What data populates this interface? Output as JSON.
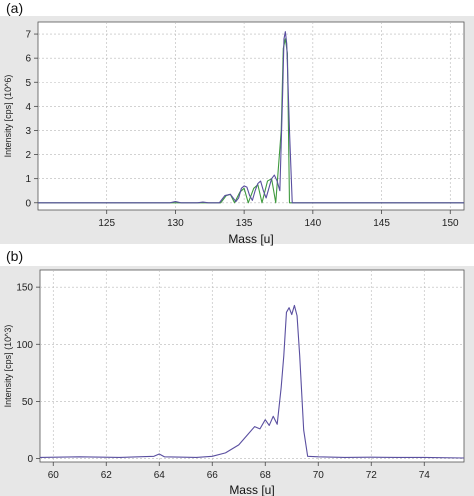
{
  "panel_labels": {
    "a": "(a)",
    "b": "(b)"
  },
  "chart_data": [
    {
      "type": "line",
      "panel": "(a)",
      "xlabel": "Mass [u]",
      "ylabel": "Intensity [cps] (10^6)",
      "xlim": [
        120,
        151
      ],
      "ylim": [
        -0.3,
        7.5
      ],
      "x_ticks": [
        125,
        130,
        135,
        140,
        145,
        150
      ],
      "y_ticks": [
        0,
        1,
        2,
        3,
        4,
        5,
        6,
        7
      ],
      "grid": true,
      "series": [
        {
          "color": "#5a4fa0",
          "x": [
            120,
            129.6,
            130,
            130.4,
            131.6,
            132,
            132.4,
            133.2,
            133.6,
            134,
            134.4,
            134.6,
            134.8,
            135,
            135.2,
            135.4,
            135.6,
            135.8,
            136,
            136.2,
            136.4,
            136.6,
            136.8,
            137,
            137.2,
            137.4,
            137.6,
            137.8,
            137.9,
            138,
            138.1,
            138.3,
            138.5,
            151
          ],
          "y": [
            0,
            0,
            0.05,
            0,
            0,
            0.03,
            0,
            0,
            0.3,
            0.35,
            0.05,
            0.2,
            0.6,
            0.7,
            0.65,
            0.3,
            0.1,
            0.5,
            0.8,
            0.9,
            0.5,
            0.2,
            0.6,
            1.0,
            1.15,
            0.9,
            0.5,
            4.5,
            6.8,
            7.1,
            6.6,
            3.0,
            0,
            0
          ]
        },
        {
          "color": "#3f9a3f",
          "x": [
            120,
            133.3,
            133.7,
            134,
            134.3,
            134.7,
            135,
            135.3,
            135.7,
            136,
            136.3,
            136.7,
            137,
            137.3,
            137.7,
            137.85,
            138,
            138.15,
            138.3,
            151
          ],
          "y": [
            0,
            0,
            0.3,
            0.35,
            0,
            0.45,
            0.6,
            0,
            0.6,
            0.75,
            0,
            0.9,
            1.0,
            0,
            3.0,
            6.4,
            6.8,
            6.2,
            0,
            0
          ]
        }
      ]
    },
    {
      "type": "line",
      "panel": "(b)",
      "xlabel": "Mass [u]",
      "ylabel": "Intensity [cps] (10^3)",
      "xlim": [
        59.5,
        75.5
      ],
      "ylim": [
        -3,
        165
      ],
      "x_ticks": [
        60,
        62,
        64,
        66,
        68,
        70,
        72,
        74
      ],
      "y_ticks": [
        0,
        50,
        100,
        150
      ],
      "grid": true,
      "series": [
        {
          "color": "#5a4fa0",
          "x": [
            59.5,
            61,
            62.5,
            63.8,
            64,
            64.2,
            65.4,
            66,
            66.5,
            67,
            67.3,
            67.6,
            67.8,
            68,
            68.15,
            68.3,
            68.45,
            68.6,
            68.7,
            68.8,
            68.9,
            69,
            69.1,
            69.2,
            69.3,
            69.45,
            69.6,
            70,
            71,
            72,
            73,
            74,
            75.5
          ],
          "y": [
            1,
            1.5,
            1,
            2,
            4,
            1.5,
            1,
            2,
            5,
            12,
            20,
            28,
            26,
            34,
            29,
            37,
            30,
            62,
            90,
            128,
            132,
            126,
            134,
            125,
            90,
            25,
            2,
            1.5,
            1,
            1.2,
            1,
            1,
            0.5
          ]
        }
      ]
    }
  ]
}
